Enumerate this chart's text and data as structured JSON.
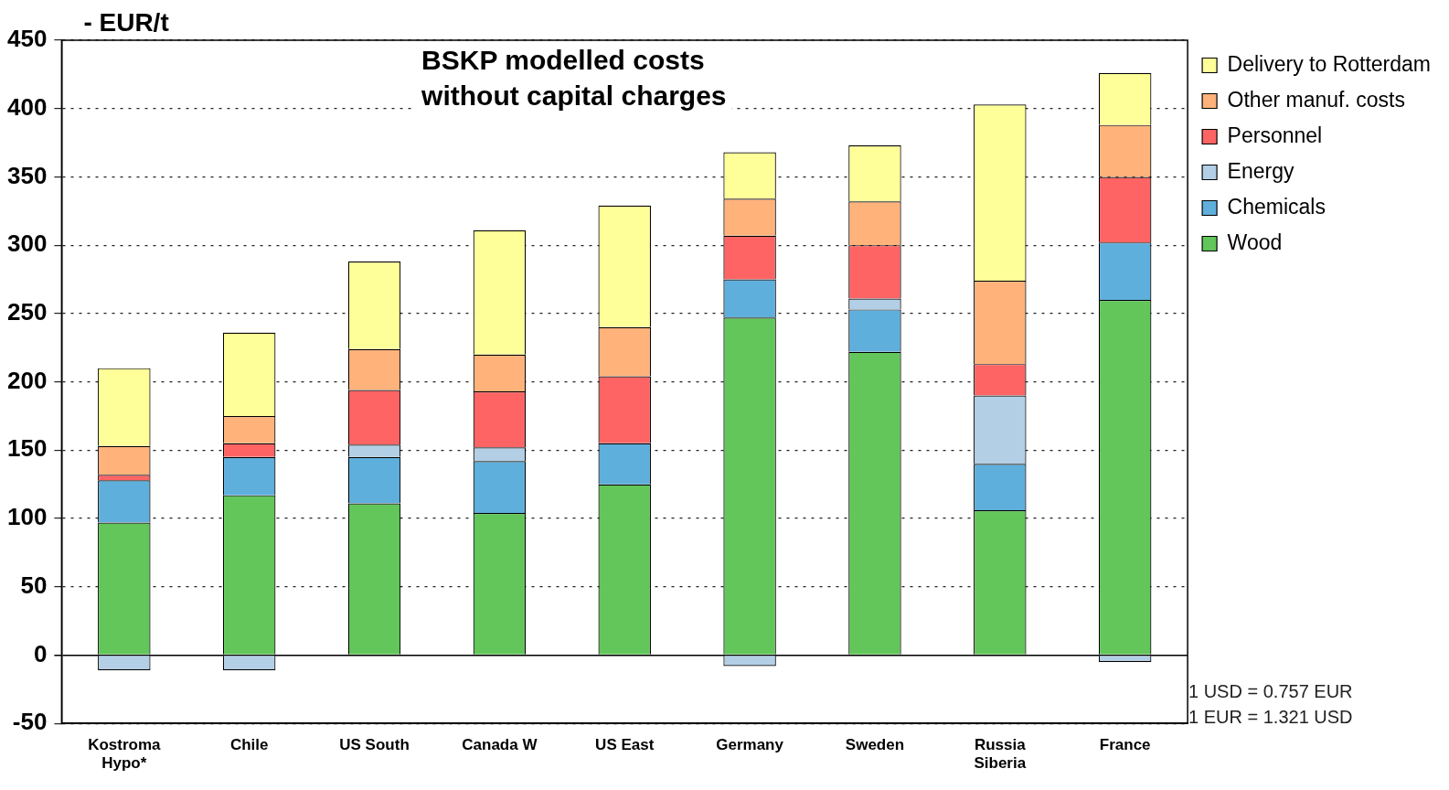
{
  "chart_data": {
    "type": "bar",
    "stacked": true,
    "title": "BSKP modelled costs\nwithout capital charges",
    "ylabel": "- EUR/t",
    "categories": [
      "Kostroma\nHypo*",
      "Chile",
      "US South",
      "Canada W",
      "US East",
      "Germany",
      "Sweden",
      "Russia\nSiberia",
      "France"
    ],
    "series": [
      {
        "name": "Wood",
        "color": "#62c65a",
        "values": [
          97,
          117,
          111,
          104,
          125,
          247,
          222,
          106,
          260
        ]
      },
      {
        "name": "Chemicals",
        "color": "#5fafdc",
        "values": [
          31,
          28,
          34,
          38,
          30,
          28,
          31,
          34,
          42
        ]
      },
      {
        "name": "Energy",
        "color": "#b3cfe6",
        "values": [
          -11,
          -11,
          9,
          10,
          null,
          -8,
          8,
          50,
          -5
        ]
      },
      {
        "name": "Personnel",
        "color": "#ff6464",
        "values": [
          4,
          10,
          40,
          41,
          49,
          32,
          39,
          23,
          48
        ]
      },
      {
        "name": "Other manuf. costs",
        "color": "#ffb27a",
        "values": [
          21,
          20,
          30,
          27,
          36,
          27,
          32,
          61,
          38
        ]
      },
      {
        "name": "Delivery to Rotterdam",
        "color": "#ffff99",
        "values": [
          57,
          61,
          64,
          91,
          89,
          34,
          41,
          129,
          38
        ]
      }
    ],
    "ylim": [
      -50,
      450
    ],
    "yticks": [
      -50,
      0,
      50,
      100,
      150,
      200,
      250,
      300,
      350,
      400,
      450
    ],
    "grid": "y",
    "legend": "top right",
    "annotations": [
      "1 USD = 0.757 EUR",
      "1 EUR = 1.321 USD"
    ]
  }
}
